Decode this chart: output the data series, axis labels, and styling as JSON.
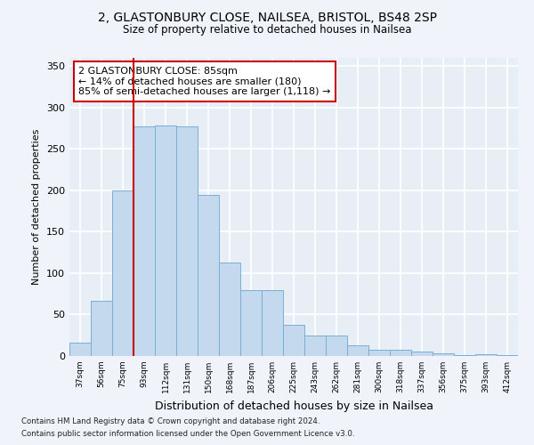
{
  "title1": "2, GLASTONBURY CLOSE, NAILSEA, BRISTOL, BS48 2SP",
  "title2": "Size of property relative to detached houses in Nailsea",
  "xlabel": "Distribution of detached houses by size in Nailsea",
  "ylabel": "Number of detached properties",
  "categories": [
    "37sqm",
    "56sqm",
    "75sqm",
    "93sqm",
    "112sqm",
    "131sqm",
    "150sqm",
    "168sqm",
    "187sqm",
    "206sqm",
    "225sqm",
    "243sqm",
    "262sqm",
    "281sqm",
    "300sqm",
    "318sqm",
    "337sqm",
    "356sqm",
    "375sqm",
    "393sqm",
    "412sqm"
  ],
  "values": [
    16,
    67,
    200,
    277,
    278,
    277,
    195,
    113,
    79,
    79,
    38,
    25,
    25,
    13,
    8,
    7,
    5,
    3,
    1,
    2,
    1
  ],
  "bar_color": "#c5d9ee",
  "bar_edge_color": "#7aaed4",
  "vline_color": "#cc0000",
  "vline_x_idx": 3,
  "annotation_text": "2 GLASTONBURY CLOSE: 85sqm\n← 14% of detached houses are smaller (180)\n85% of semi-detached houses are larger (1,118) →",
  "ylim": [
    0,
    360
  ],
  "yticks": [
    0,
    50,
    100,
    150,
    200,
    250,
    300,
    350
  ],
  "footer1": "Contains HM Land Registry data © Crown copyright and database right 2024.",
  "footer2": "Contains public sector information licensed under the Open Government Licence v3.0.",
  "bg_color": "#f0f4fa",
  "plot_bg_color": "#e8eef6"
}
